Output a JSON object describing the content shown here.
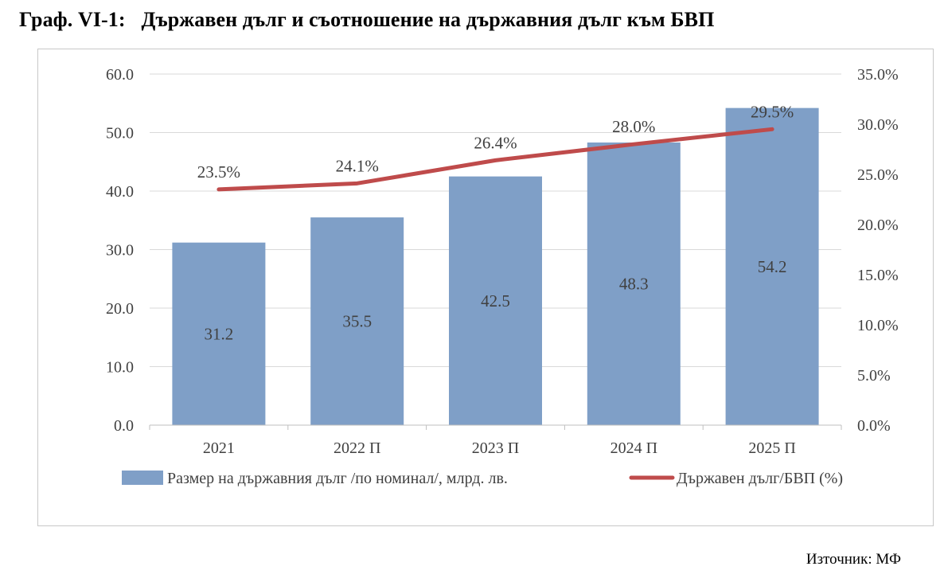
{
  "header": {
    "title": "Граф. VI-1:   Държавен дълг и съотношение на държавния дълг към БВП"
  },
  "footer": {
    "source": "Източник: МФ"
  },
  "colors": {
    "bar": "#7f9fc7",
    "line": "#bf4b4b",
    "grid": "#d9d9d9",
    "axis": "#bfbfbf",
    "text": "#404040"
  },
  "chart_data": {
    "type": "bar+line",
    "categories": [
      "2021",
      "2022 П",
      "2023 П",
      "2024 П",
      "2025 П"
    ],
    "series": [
      {
        "name": "Размер на държавния дълг /по номинал/, млрд. лв.",
        "type": "bar",
        "axis": "left",
        "values": [
          31.2,
          35.5,
          42.5,
          48.3,
          54.2
        ],
        "labels": [
          "31.2",
          "35.5",
          "42.5",
          "48.3",
          "54.2"
        ]
      },
      {
        "name": "Държавен дълг/БВП (%)",
        "type": "line",
        "axis": "right",
        "values": [
          23.5,
          24.1,
          26.4,
          28.0,
          29.5
        ],
        "labels": [
          "23.5%",
          "24.1%",
          "26.4%",
          "28.0%",
          "29.5%"
        ]
      }
    ],
    "y_left": {
      "min": 0,
      "max": 60,
      "ticks": [
        "0.0",
        "10.0",
        "20.0",
        "30.0",
        "40.0",
        "50.0",
        "60.0"
      ]
    },
    "y_right": {
      "min": 0,
      "max": 35,
      "ticks": [
        "0.0%",
        "5.0%",
        "10.0%",
        "15.0%",
        "20.0%",
        "25.0%",
        "30.0%",
        "35.0%"
      ]
    },
    "grid": true,
    "legend": "bottom"
  }
}
